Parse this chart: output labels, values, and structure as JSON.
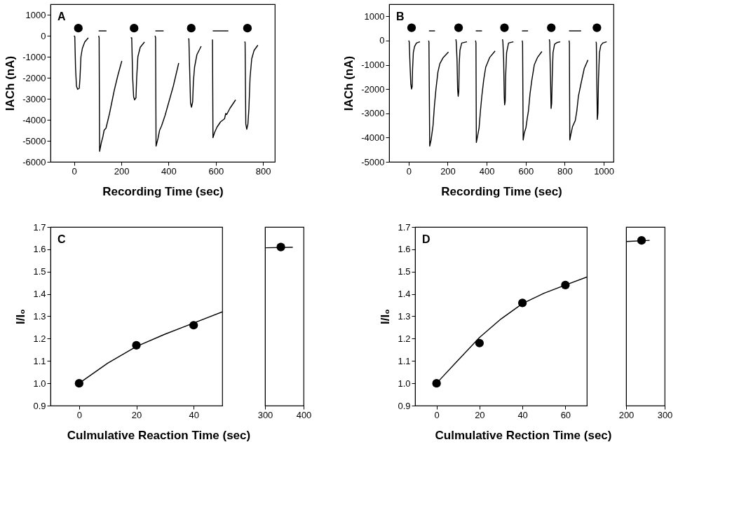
{
  "chart_data": [
    {
      "type": "line",
      "annotations": [
        "A"
      ],
      "xlabel": "Recording Time (sec)",
      "ylabel": "IACh (nA)",
      "xlim": [
        -100,
        850
      ],
      "xticks": [
        0,
        200,
        400,
        600,
        800
      ],
      "ylim": [
        -6000,
        1500
      ],
      "yticks": [
        -6000,
        -5000,
        -4000,
        -3000,
        -2000,
        -1000,
        0,
        1000
      ],
      "grid": false,
      "series": [
        {
          "type": "line",
          "color": "#000000",
          "x": [
            0,
            3,
            6,
            10,
            15,
            22,
            25,
            29,
            35,
            45,
            60
          ],
          "values": [
            0,
            -50,
            -1500,
            -2400,
            -2550,
            -2500,
            -2000,
            -1000,
            -600,
            -300,
            -100
          ]
        },
        {
          "type": "line",
          "color": "#000000",
          "x": [
            104,
            106,
            108,
            115,
            122,
            127,
            135,
            150,
            170,
            185,
            202
          ],
          "values": [
            0,
            -100,
            -5500,
            -5100,
            -4800,
            -4500,
            -4400,
            -3700,
            -2600,
            -1900,
            -1200
          ]
        },
        {
          "type": "line",
          "color": "#000000",
          "x": [
            240,
            244,
            248,
            252,
            256,
            262,
            265,
            270,
            280,
            298
          ],
          "values": [
            -100,
            -100,
            -2000,
            -2900,
            -3050,
            -2950,
            -2000,
            -1000,
            -550,
            -300
          ]
        },
        {
          "type": "line",
          "color": "#000000",
          "x": [
            343,
            345,
            347,
            355,
            362,
            370,
            385,
            400,
            420,
            443
          ],
          "values": [
            0,
            -100,
            -5250,
            -4900,
            -4500,
            -4300,
            -3800,
            -3200,
            -2400,
            -1300
          ]
        },
        {
          "type": "line",
          "color": "#000000",
          "x": [
            483,
            486,
            489,
            493,
            497,
            502,
            505,
            510,
            520,
            538
          ],
          "values": [
            -150,
            -150,
            -1500,
            -3200,
            -3400,
            -3150,
            -2200,
            -1500,
            -900,
            -500
          ]
        },
        {
          "type": "line",
          "color": "#000000",
          "x": [
            584,
            586,
            588,
            595,
            605,
            620,
            637,
            642,
            646,
            660,
            684
          ],
          "values": [
            -200,
            -200,
            -4850,
            -4600,
            -4350,
            -4100,
            -3950,
            -3700,
            -3750,
            -3450,
            -3050
          ]
        },
        {
          "type": "line",
          "color": "#000000",
          "x": [
            721,
            724,
            727,
            731,
            736,
            740,
            745,
            752,
            762,
            778
          ],
          "values": [
            -300,
            -300,
            -4200,
            -4450,
            -4200,
            -3500,
            -2000,
            -1100,
            -700,
            -450
          ]
        },
        {
          "type": "line",
          "color": "#000000",
          "x": [
            104,
            137
          ],
          "values": [
            230,
            230
          ]
        },
        {
          "type": "line",
          "color": "#000000",
          "x": [
            344,
            379
          ],
          "values": [
            230,
            230
          ]
        },
        {
          "type": "line",
          "color": "#000000",
          "x": [
            587,
            653
          ],
          "values": [
            230,
            230
          ]
        },
        {
          "type": "scatter",
          "marker": "circle",
          "color": "#000000",
          "x": [
            18,
            254,
            496,
            734
          ],
          "values": [
            360,
            360,
            360,
            360
          ]
        }
      ]
    },
    {
      "type": "line",
      "annotations": [
        "B"
      ],
      "xlabel": "Recording Time (sec)",
      "ylabel": "IACh (nA)",
      "xlim": [
        -100,
        1050
      ],
      "xticks": [
        0,
        200,
        400,
        600,
        800,
        1000
      ],
      "ylim": [
        -5000,
        1500
      ],
      "yticks": [
        -5000,
        -4000,
        -3000,
        -2000,
        -1000,
        0,
        1000
      ],
      "grid": false,
      "series": [
        {
          "type": "line",
          "color": "#000000",
          "x": [
            0,
            3,
            7,
            11,
            15,
            18,
            20,
            24,
            30,
            40,
            58
          ],
          "values": [
            0,
            -50,
            -1000,
            -1800,
            -2000,
            -1900,
            -1200,
            -500,
            -250,
            -100,
            -50
          ]
        },
        {
          "type": "line",
          "color": "#000000",
          "x": [
            102,
            104,
            108,
            115,
            125,
            132,
            140,
            150,
            160,
            177,
            204
          ],
          "values": [
            0,
            -50,
            -4350,
            -4100,
            -3500,
            -2700,
            -2000,
            -1300,
            -950,
            -700,
            -470
          ]
        },
        {
          "type": "line",
          "color": "#000000",
          "x": [
            242,
            244,
            248,
            251,
            254,
            257,
            259,
            263,
            272,
            299
          ],
          "values": [
            50,
            -50,
            -800,
            -2000,
            -2300,
            -2100,
            -1000,
            -400,
            -100,
            -50
          ]
        },
        {
          "type": "line",
          "color": "#000000",
          "x": [
            343,
            345,
            347,
            353,
            361,
            368,
            375,
            385,
            395,
            415,
            443
          ],
          "values": [
            0,
            -100,
            -4200,
            -3950,
            -3600,
            -2900,
            -2300,
            -1600,
            -1100,
            -700,
            -430
          ]
        },
        {
          "type": "line",
          "color": "#000000",
          "x": [
            481,
            483,
            487,
            490,
            492,
            495,
            497,
            502,
            512,
            537
          ],
          "values": [
            50,
            -50,
            -800,
            -2300,
            -2650,
            -2500,
            -1500,
            -500,
            -100,
            -50
          ]
        },
        {
          "type": "line",
          "color": "#000000",
          "x": [
            582,
            584,
            587,
            593,
            601,
            608,
            614,
            622,
            631,
            644,
            660,
            683
          ],
          "values": [
            0,
            -100,
            -4100,
            -3800,
            -3600,
            -3200,
            -2900,
            -2200,
            -1650,
            -1000,
            -700,
            -450
          ]
        },
        {
          "type": "line",
          "color": "#000000",
          "x": [
            721,
            723,
            727,
            730,
            733,
            736,
            740,
            748,
            760,
            777
          ],
          "values": [
            50,
            -50,
            -1500,
            -2800,
            -2600,
            -1500,
            -500,
            -150,
            -80,
            -50
          ]
        },
        {
          "type": "line",
          "color": "#000000",
          "x": [
            822,
            824,
            826,
            832,
            840,
            854,
            862,
            870,
            884,
            900,
            919
          ],
          "values": [
            0,
            -100,
            -4100,
            -3850,
            -3550,
            -3300,
            -2900,
            -2300,
            -1750,
            -1150,
            -800
          ]
        },
        {
          "type": "line",
          "color": "#000000",
          "x": [
            960,
            962,
            965,
            967,
            970,
            973,
            978,
            985,
            995,
            1015
          ],
          "values": [
            -50,
            -100,
            -2000,
            -3250,
            -3000,
            -1600,
            -500,
            -200,
            -100,
            -50
          ]
        },
        {
          "type": "line",
          "color": "#000000",
          "x": [
            104,
            135
          ],
          "values": [
            400,
            400
          ]
        },
        {
          "type": "line",
          "color": "#000000",
          "x": [
            344,
            376
          ],
          "values": [
            400,
            400
          ]
        },
        {
          "type": "line",
          "color": "#000000",
          "x": [
            581,
            612
          ],
          "values": [
            400,
            400
          ]
        },
        {
          "type": "line",
          "color": "#000000",
          "x": [
            822,
            884
          ],
          "values": [
            400,
            400
          ]
        },
        {
          "type": "scatter",
          "marker": "circle",
          "color": "#000000",
          "x": [
            15,
            256,
            491,
            731,
            965
          ],
          "values": [
            530,
            530,
            530,
            530,
            530
          ]
        }
      ]
    },
    {
      "type": "scatter",
      "annotations": [
        "C"
      ],
      "xlabel": "Culmulative Reaction Time (sec)",
      "ylabel": "I/I₀",
      "xlim": [
        -10,
        50
      ],
      "xticks": [
        0,
        20,
        40
      ],
      "ylim": [
        0.9,
        1.7
      ],
      "yticks": [
        0.9,
        {
          "value": 1,
          "label": "1.0"
        },
        1.1,
        1.2,
        1.3,
        1.4,
        1.5,
        1.6,
        1.7
      ],
      "grid": false,
      "series": [
        {
          "type": "line",
          "color": "#000000",
          "x": [
            0,
            10,
            20,
            30,
            40,
            50
          ],
          "values": [
            1.0,
            1.09,
            1.165,
            1.22,
            1.27,
            1.32
          ]
        },
        {
          "marker": "circle",
          "color": "#000000",
          "x": [
            0,
            20,
            40
          ],
          "values": [
            1.0,
            1.17,
            1.26
          ]
        }
      ]
    },
    {
      "type": "scatter",
      "tick_labels": "x",
      "xlim": [
        300,
        400
      ],
      "xticks": [
        300,
        400
      ],
      "ylim": [
        0.9,
        1.7
      ],
      "grid": false,
      "series": [
        {
          "type": "line",
          "color": "#000000",
          "x": [
            302,
            372
          ],
          "values": [
            1.607,
            1.609
          ]
        },
        {
          "marker": "circle",
          "color": "#000000",
          "x": [
            341
          ],
          "values": [
            1.61
          ]
        }
      ]
    },
    {
      "type": "scatter",
      "annotations": [
        "D"
      ],
      "xlabel": "Culmulative Rection Time (sec)",
      "ylabel": "I/I₀",
      "xlim": [
        -10,
        70
      ],
      "xticks": [
        0,
        20,
        40,
        60
      ],
      "ylim": [
        0.9,
        1.7
      ],
      "yticks": [
        0.9,
        {
          "value": 1,
          "label": "1.0"
        },
        1.1,
        1.2,
        1.3,
        1.4,
        1.5,
        1.6,
        1.7
      ],
      "grid": false,
      "series": [
        {
          "type": "line",
          "color": "#000000",
          "x": [
            0,
            10,
            20,
            30,
            40,
            50,
            60,
            70
          ],
          "values": [
            1.0,
            1.103,
            1.205,
            1.288,
            1.357,
            1.403,
            1.44,
            1.476
          ]
        },
        {
          "marker": "circle",
          "color": "#000000",
          "x": [
            0,
            20,
            40,
            60
          ],
          "values": [
            1.0,
            1.18,
            1.36,
            1.44
          ]
        }
      ]
    },
    {
      "type": "scatter",
      "tick_labels": "x",
      "xlim": [
        200,
        300
      ],
      "xticks": [
        200,
        300
      ],
      "ylim": [
        0.9,
        1.7
      ],
      "grid": false,
      "series": [
        {
          "type": "line",
          "color": "#000000",
          "x": [
            201,
            261
          ],
          "values": [
            1.635,
            1.64
          ]
        },
        {
          "marker": "circle",
          "color": "#000000",
          "x": [
            240
          ],
          "values": [
            1.64
          ]
        }
      ]
    }
  ]
}
